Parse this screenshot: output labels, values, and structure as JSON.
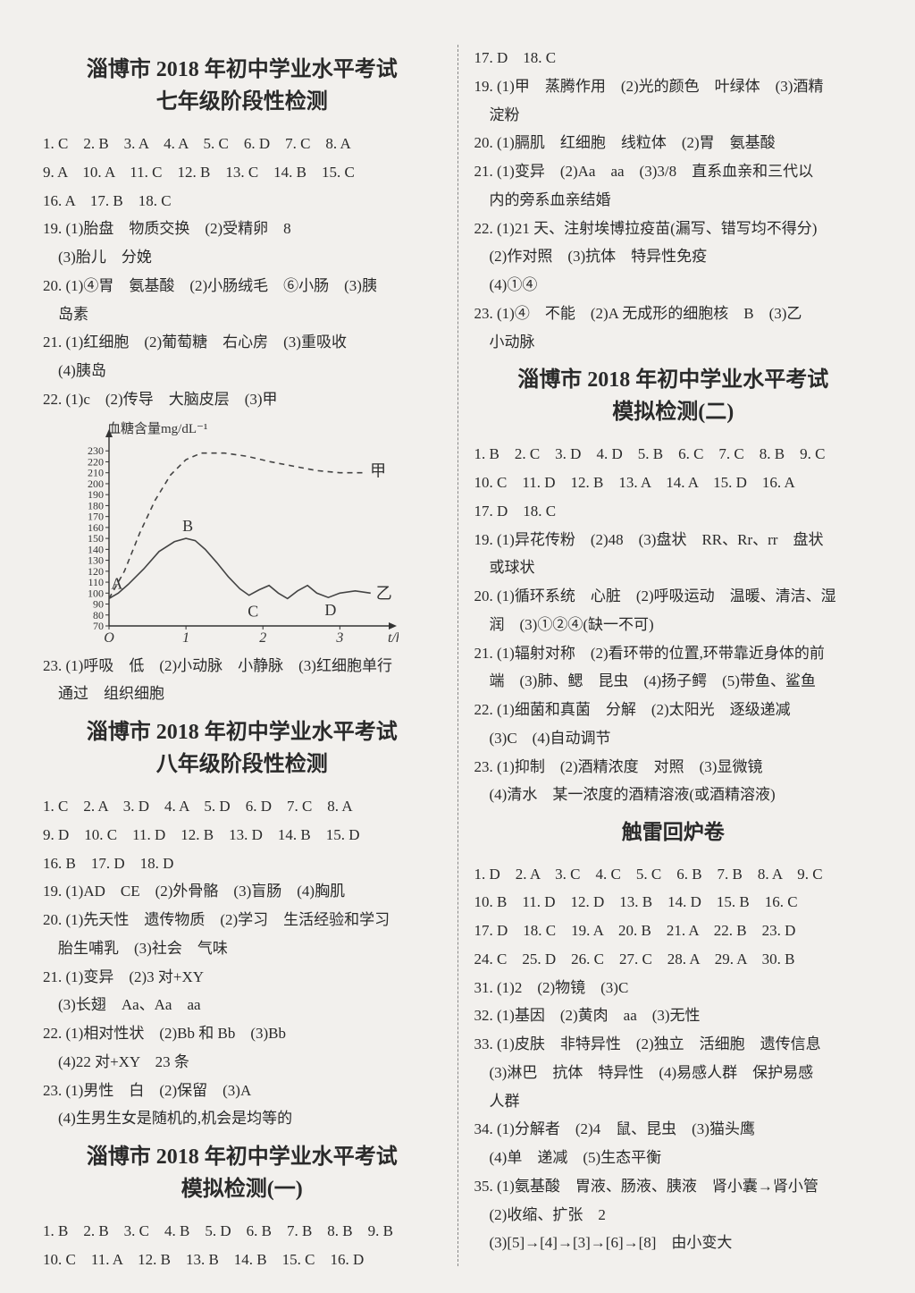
{
  "colors": {
    "bg": "#f2f0ed",
    "text": "#2a2a2a",
    "axis": "#333",
    "line": "#444",
    "dash": "#444"
  },
  "left": {
    "section1": {
      "title1": "淄博市 2018 年初中学业水平考试",
      "title2": "七年级阶段性检测",
      "rows": [
        "1. C　2. B　3. A　4. A　5. C　6. D　7. C　8. A",
        "9. A　10. A　11. C　12. B　13. C　14. B　15. C",
        "16. A　17. B　18. C",
        "19. (1)胎盘　物质交换　(2)受精卵　8",
        "　(3)胎儿　分娩",
        "20. (1)④胃　氨基酸　(2)小肠绒毛　⑥小肠　(3)胰",
        "　岛素",
        "21. (1)红细胞　(2)葡萄糖　右心房　(3)重吸收",
        "　(4)胰岛",
        "22. (1)c　(2)传导　大脑皮层　(3)甲"
      ],
      "after_chart": [
        "23. (1)呼吸　低　(2)小动脉　小静脉　(3)红细胞单行",
        "　通过　组织细胞"
      ]
    },
    "section2": {
      "title1": "淄博市 2018 年初中学业水平考试",
      "title2": "八年级阶段性检测",
      "rows": [
        "1. C　2. A　3. D　4. A　5. D　6. D　7. C　8. A",
        "9. D　10. C　11. D　12. B　13. D　14. B　15. D",
        "16. B　17. D　18. D",
        "19. (1)AD　CE　(2)外骨骼　(3)盲肠　(4)胸肌",
        "20. (1)先天性　遗传物质　(2)学习　生活经验和学习",
        "　胎生哺乳　(3)社会　气味",
        "21. (1)变异　(2)3 对+XY",
        "　(3)长翅　Aa、Aa　aa",
        "22. (1)相对性状　(2)Bb 和 Bb　(3)Bb",
        "　(4)22 对+XY　23 条",
        "23. (1)男性　白　(2)保留　(3)A",
        "　(4)生男生女是随机的,机会是均等的"
      ]
    },
    "section3": {
      "title1": "淄博市 2018 年初中学业水平考试",
      "title2": "模拟检测(一)",
      "rows": [
        "1. B　2. B　3. C　4. B　5. D　6. B　7. B　8. B　9. B",
        "10. C　11. A　12. B　13. B　14. B　15. C　16. D"
      ]
    }
  },
  "right": {
    "pre": [
      "17. D　18. C",
      "19. (1)甲　蒸腾作用　(2)光的颜色　叶绿体　(3)酒精",
      "　淀粉",
      "20. (1)膈肌　红细胞　线粒体　(2)胃　氨基酸",
      "21. (1)变异　(2)Aa　aa　(3)3/8　直系血亲和三代以",
      "　内的旁系血亲结婚",
      "22. (1)21 天、注射埃博拉疫苗(漏写、错写均不得分)",
      "　(2)作对照　(3)抗体　特异性免疫",
      "　(4)①④",
      "23. (1)④　不能　(2)A 无成形的细胞核　B　(3)乙",
      "　小动脉"
    ],
    "section1": {
      "title1": "淄博市 2018 年初中学业水平考试",
      "title2": "模拟检测(二)",
      "rows": [
        "1. B　2. C　3. D　4. D　5. B　6. C　7. C　8. B　9. C",
        "10. C　11. D　12. B　13. A　14. A　15. D　16. A",
        "17. D　18. C",
        "19. (1)异花传粉　(2)48　(3)盘状　RR、Rr、rr　盘状",
        "　或球状",
        "20. (1)循环系统　心脏　(2)呼吸运动　温暖、清洁、湿",
        "　润　(3)①②④(缺一不可)",
        "21. (1)辐射对称　(2)看环带的位置,环带靠近身体的前",
        "　端　(3)肺、鳃　昆虫　(4)扬子鳄　(5)带鱼、鲨鱼",
        "22. (1)细菌和真菌　分解　(2)太阳光　逐级递减",
        "　(3)C　(4)自动调节",
        "23. (1)抑制　(2)酒精浓度　对照　(3)显微镜",
        "　(4)清水　某一浓度的酒精溶液(或酒精溶液)"
      ]
    },
    "section2": {
      "title1": "触雷回炉卷",
      "rows": [
        "1. D　2. A　3. C　4. C　5. C　6. B　7. B　8. A　9. C",
        "10. B　11. D　12. D　13. B　14. D　15. B　16. C",
        "17. D　18. C　19. A　20. B　21. A　22. B　23. D",
        "24. C　25. D　26. C　27. C　28. A　29. A　30. B",
        "31. (1)2　(2)物镜　(3)C",
        "32. (1)基因　(2)黄肉　aa　(3)无性",
        "33. (1)皮肤　非特异性　(2)独立　活细胞　遗传信息",
        "　(3)淋巴　抗体　特异性　(4)易感人群　保护易感",
        "　人群",
        "34. (1)分解者　(2)4　鼠、昆虫　(3)猫头鹰",
        "　(4)单　递减　(5)生态平衡",
        "35. (1)氨基酸　胃液、肠液、胰液　肾小囊→肾小管",
        "　(2)收缩、扩张　2",
        "　(3)[5]→[4]→[3]→[6]→[8]　由小变大"
      ]
    }
  },
  "chart": {
    "type": "line",
    "ylabel": "血糖含量mg/dL⁻¹",
    "xlabel_unit": "t/h",
    "xticks": [
      0,
      1,
      2,
      3
    ],
    "xtick_labels": [
      "O",
      "1",
      "2",
      "3"
    ],
    "yticks": [
      70,
      80,
      90,
      100,
      110,
      120,
      130,
      140,
      150,
      160,
      170,
      180,
      190,
      200,
      210,
      220,
      230
    ],
    "ylim": [
      70,
      240
    ],
    "xlim": [
      0,
      3.6
    ],
    "series_solid": {
      "label_left": "A",
      "label_peak": "B",
      "label_c": "C",
      "label_d": "D",
      "label_right": "乙",
      "points": [
        [
          0.0,
          95
        ],
        [
          0.12,
          100
        ],
        [
          0.25,
          108
        ],
        [
          0.45,
          122
        ],
        [
          0.65,
          138
        ],
        [
          0.85,
          147
        ],
        [
          1.0,
          150
        ],
        [
          1.12,
          148
        ],
        [
          1.25,
          140
        ],
        [
          1.4,
          128
        ],
        [
          1.55,
          115
        ],
        [
          1.7,
          104
        ],
        [
          1.82,
          98
        ],
        [
          1.95,
          103
        ],
        [
          2.08,
          107
        ],
        [
          2.2,
          100
        ],
        [
          2.32,
          95
        ],
        [
          2.45,
          102
        ],
        [
          2.58,
          107
        ],
        [
          2.7,
          100
        ],
        [
          2.85,
          96
        ],
        [
          3.0,
          100
        ],
        [
          3.2,
          102
        ],
        [
          3.4,
          100
        ]
      ]
    },
    "series_dashed": {
      "label": "甲",
      "points": [
        [
          0.0,
          95
        ],
        [
          0.2,
          120
        ],
        [
          0.4,
          155
        ],
        [
          0.6,
          185
        ],
        [
          0.8,
          208
        ],
        [
          1.0,
          222
        ],
        [
          1.2,
          228
        ],
        [
          1.5,
          228
        ],
        [
          1.8,
          225
        ],
        [
          2.1,
          220
        ],
        [
          2.4,
          216
        ],
        [
          2.7,
          212
        ],
        [
          3.0,
          210
        ],
        [
          3.3,
          210
        ]
      ]
    },
    "axis_color": "#333",
    "line_color": "#444",
    "line_width": 1.6,
    "dash_pattern": "6 5",
    "font_size_y": 12,
    "font_size_x": 16,
    "font_size_label": 18,
    "background": "#f2f0ed"
  }
}
